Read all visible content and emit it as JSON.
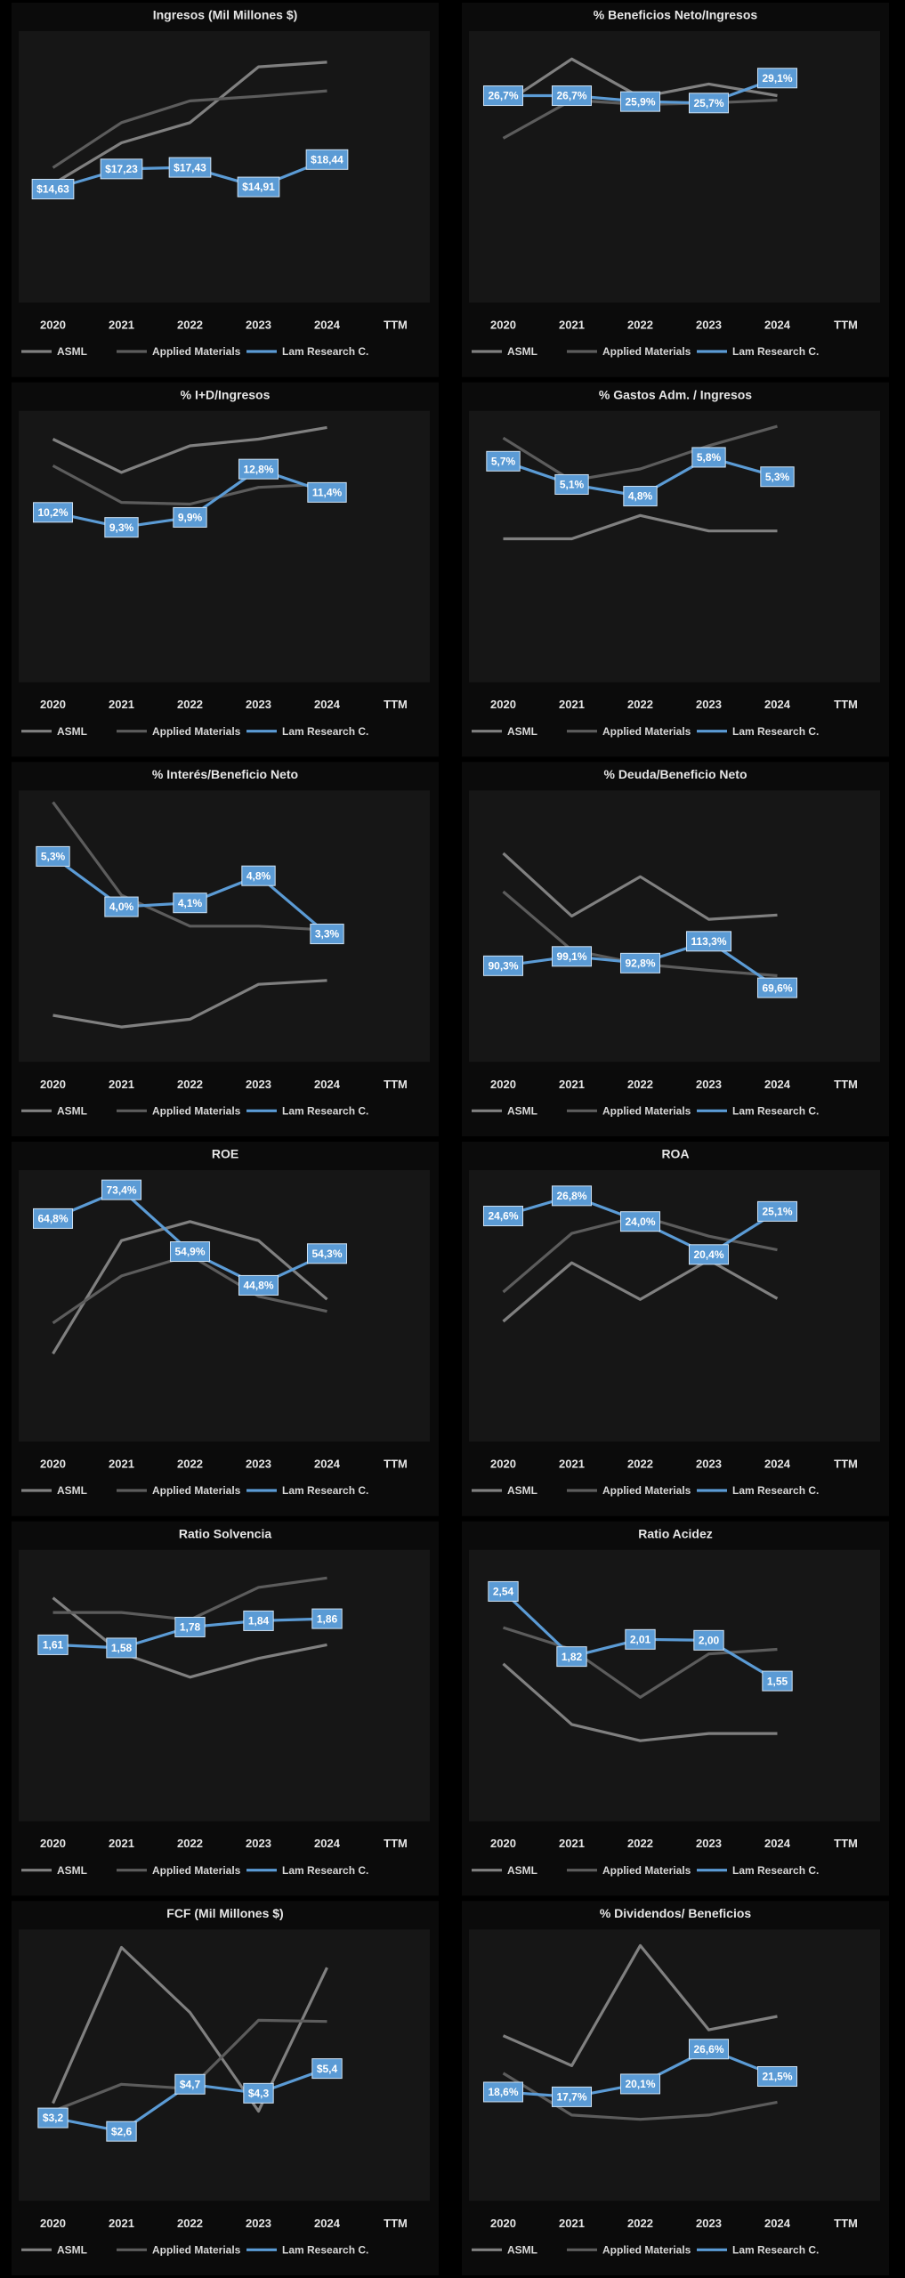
{
  "chart_data": [
    {
      "type": "line",
      "title": "Ingresos (Mil Millones $)",
      "categories": [
        "2020",
        "2021",
        "2022",
        "2023",
        "2024",
        "TTM"
      ],
      "ylim": [
        0,
        35
      ],
      "series": [
        {
          "name": "ASML",
          "color": "#808080",
          "values": [
            15.3,
            20.6,
            23.2,
            30.4,
            31.0,
            null
          ]
        },
        {
          "name": "Applied Materials",
          "color": "#5c5c5c",
          "values": [
            17.4,
            23.2,
            26.0,
            26.6,
            27.3,
            null
          ]
        },
        {
          "name": "Lam Research C.",
          "color": "#5b9bd5",
          "values": [
            14.63,
            17.23,
            17.43,
            14.91,
            18.44,
            null
          ],
          "value_labels": [
            "$14,63",
            "$17,23",
            "$17,43",
            "$14,91",
            "$18,44",
            null
          ]
        }
      ]
    },
    {
      "type": "line",
      "title": "% Beneficios Neto/Ingresos",
      "categories": [
        "2020",
        "2021",
        "2022",
        "2023",
        "2024",
        "TTM"
      ],
      "ylim": [
        -1.5,
        35.5
      ],
      "series": [
        {
          "name": "ASML",
          "color": "#808080",
          "values": [
            25.5,
            31.7,
            26.5,
            28.3,
            26.7,
            null
          ]
        },
        {
          "name": "Applied Materials",
          "color": "#5c5c5c",
          "values": [
            20.9,
            26.1,
            25.5,
            25.7,
            26.1,
            null
          ]
        },
        {
          "name": "Lam Research C.",
          "color": "#5b9bd5",
          "values": [
            26.7,
            26.7,
            25.9,
            25.7,
            29.1,
            null
          ],
          "value_labels": [
            "26,7%",
            "26,7%",
            "25,9%",
            "25,7%",
            "29,1%",
            null
          ]
        }
      ]
    },
    {
      "type": "line",
      "title": "% I+D/Ingresos",
      "categories": [
        "2020",
        "2021",
        "2022",
        "2023",
        "2024",
        "TTM"
      ],
      "ylim": [
        0,
        16.3
      ],
      "series": [
        {
          "name": "ASML",
          "color": "#808080",
          "values": [
            14.6,
            12.6,
            14.2,
            14.6,
            15.3,
            null
          ]
        },
        {
          "name": "Applied Materials",
          "color": "#5c5c5c",
          "values": [
            13.0,
            10.8,
            10.7,
            11.7,
            11.9,
            null
          ]
        },
        {
          "name": "Lam Research C.",
          "color": "#5b9bd5",
          "values": [
            10.2,
            9.3,
            9.9,
            12.8,
            11.4,
            null
          ],
          "value_labels": [
            "10,2%",
            "9,3%",
            "9,9%",
            "12,8%",
            "11,4%",
            null
          ]
        }
      ]
    },
    {
      "type": "line",
      "title": "% Gastos Adm. / Ingresos",
      "categories": [
        "2020",
        "2021",
        "2022",
        "2023",
        "2024",
        "TTM"
      ],
      "ylim": [
        0,
        7
      ],
      "series": [
        {
          "name": "ASML",
          "color": "#808080",
          "values": [
            3.7,
            3.7,
            4.3,
            3.9,
            3.9,
            null
          ]
        },
        {
          "name": "Applied Materials",
          "color": "#5c5c5c",
          "values": [
            6.3,
            5.2,
            5.5,
            6.1,
            6.6,
            null
          ]
        },
        {
          "name": "Lam Research C.",
          "color": "#5b9bd5",
          "values": [
            5.7,
            5.1,
            4.8,
            5.8,
            5.3,
            null
          ],
          "value_labels": [
            "5,7%",
            "5,1%",
            "4,8%",
            "5,8%",
            "5,3%",
            null
          ]
        }
      ]
    },
    {
      "type": "line",
      "title": "% Interés/Beneficio Neto",
      "categories": [
        "2020",
        "2021",
        "2022",
        "2023",
        "2024",
        "TTM"
      ],
      "ylim": [
        0,
        7
      ],
      "series": [
        {
          "name": "ASML",
          "color": "#808080",
          "values": [
            1.2,
            0.9,
            1.1,
            2.0,
            2.1,
            null
          ]
        },
        {
          "name": "Applied Materials",
          "color": "#5c5c5c",
          "values": [
            6.7,
            4.3,
            3.5,
            3.5,
            3.4,
            null
          ]
        },
        {
          "name": "Lam Research C.",
          "color": "#5b9bd5",
          "values": [
            5.3,
            4.0,
            4.1,
            4.8,
            3.3,
            null
          ],
          "value_labels": [
            "5,3%",
            "4,0%",
            "4,1%",
            "4,8%",
            "3,3%",
            null
          ]
        }
      ]
    },
    {
      "type": "line",
      "title": "% Deuda/Beneficio Neto",
      "categories": [
        "2020",
        "2021",
        "2022",
        "2023",
        "2024",
        "TTM"
      ],
      "ylim": [
        0,
        255
      ],
      "series": [
        {
          "name": "ASML",
          "color": "#808080",
          "values": [
            196,
            137,
            174,
            134,
            138,
            null
          ]
        },
        {
          "name": "Applied Materials",
          "color": "#5c5c5c",
          "values": [
            160,
            105,
            92,
            86,
            81,
            null
          ]
        },
        {
          "name": "Lam Research C.",
          "color": "#5b9bd5",
          "values": [
            90.3,
            99.1,
            92.8,
            113.3,
            69.6,
            null
          ],
          "value_labels": [
            "90,3%",
            "99,1%",
            "92,8%",
            "113,3%",
            "69,6%",
            null
          ]
        }
      ]
    },
    {
      "type": "line",
      "title": "ROE",
      "categories": [
        "2020",
        "2021",
        "2022",
        "2023",
        "2024",
        "TTM"
      ],
      "ylim": [
        -2,
        79.3
      ],
      "series": [
        {
          "name": "ASML",
          "color": "#808080",
          "values": [
            24.3,
            58.2,
            63.9,
            58.2,
            40.6,
            null
          ]
        },
        {
          "name": "Applied Materials",
          "color": "#5c5c5c",
          "values": [
            33.5,
            47.6,
            53.8,
            41.5,
            37.0,
            null
          ]
        },
        {
          "name": "Lam Research C.",
          "color": "#5b9bd5",
          "values": [
            64.8,
            73.4,
            54.9,
            44.8,
            54.3,
            null
          ],
          "value_labels": [
            "64,8%",
            "73,4%",
            "54,9%",
            "44,8%",
            "54,3%",
            null
          ]
        }
      ]
    },
    {
      "type": "line",
      "title": "ROA",
      "categories": [
        "2020",
        "2021",
        "2022",
        "2023",
        "2024",
        "TTM"
      ],
      "ylim": [
        0,
        29.6
      ],
      "series": [
        {
          "name": "ASML",
          "color": "#808080",
          "values": [
            13.1,
            19.5,
            15.5,
            19.8,
            15.6,
            null
          ]
        },
        {
          "name": "Applied Materials",
          "color": "#5c5c5c",
          "values": [
            16.3,
            22.7,
            24.6,
            22.4,
            20.9,
            null
          ]
        },
        {
          "name": "Lam Research C.",
          "color": "#5b9bd5",
          "values": [
            24.6,
            26.8,
            24.0,
            20.4,
            25.1,
            null
          ],
          "value_labels": [
            "24,6%",
            "26,8%",
            "24,0%",
            "20,4%",
            "25,1%",
            null
          ]
        }
      ]
    },
    {
      "type": "line",
      "title": "Ratio Solvencia",
      "categories": [
        "2020",
        "2021",
        "2022",
        "2023",
        "2024",
        "TTM"
      ],
      "ylim": [
        -0.08,
        2.52
      ],
      "series": [
        {
          "name": "ASML",
          "color": "#808080",
          "values": [
            2.06,
            1.53,
            1.3,
            1.48,
            1.61,
            null
          ]
        },
        {
          "name": "Applied Materials",
          "color": "#5c5c5c",
          "values": [
            1.92,
            1.92,
            1.85,
            2.16,
            2.25,
            null
          ]
        },
        {
          "name": "Lam Research C.",
          "color": "#5b9bd5",
          "values": [
            1.61,
            1.58,
            1.78,
            1.84,
            1.86,
            null
          ],
          "value_labels": [
            "1,61",
            "1,58",
            "1,78",
            "1,84",
            "1,86",
            null
          ]
        }
      ]
    },
    {
      "type": "line",
      "title": "Ratio Acidez",
      "categories": [
        "2020",
        "2021",
        "2022",
        "2023",
        "2024",
        "TTM"
      ],
      "ylim": [
        0,
        3
      ],
      "series": [
        {
          "name": "ASML",
          "color": "#808080",
          "values": [
            1.74,
            1.07,
            0.89,
            0.97,
            0.97,
            null
          ]
        },
        {
          "name": "Applied Materials",
          "color": "#5c5c5c",
          "values": [
            2.14,
            1.9,
            1.37,
            1.85,
            1.9,
            null
          ]
        },
        {
          "name": "Lam Research C.",
          "color": "#5b9bd5",
          "values": [
            2.54,
            1.82,
            2.01,
            2.0,
            1.55,
            null
          ],
          "value_labels": [
            "2,54",
            "1,82",
            "2,01",
            "2,00",
            "1,55",
            null
          ]
        }
      ]
    },
    {
      "type": "line",
      "title": "FCF (Mil Millones $)",
      "categories": [
        "2020",
        "2021",
        "2022",
        "2023",
        "2024",
        "TTM"
      ],
      "ylim": [
        -0.5,
        11.6
      ],
      "series": [
        {
          "name": "ASML",
          "color": "#808080",
          "values": [
            3.85,
            10.8,
            7.9,
            3.5,
            9.9,
            null
          ]
        },
        {
          "name": "Applied Materials",
          "color": "#5c5c5c",
          "values": [
            3.5,
            4.7,
            4.5,
            7.55,
            7.5,
            null
          ]
        },
        {
          "name": "Lam Research C.",
          "color": "#5b9bd5",
          "values": [
            3.2,
            2.6,
            4.7,
            4.3,
            5.4,
            null
          ],
          "value_labels": [
            "$3,2",
            "$2,6",
            "$4,7",
            "$4,3",
            "$5,4",
            null
          ]
        }
      ]
    },
    {
      "type": "line",
      "title": "% Dividendos/ Beneficios",
      "categories": [
        "2020",
        "2021",
        "2022",
        "2023",
        "2024",
        "TTM"
      ],
      "ylim": [
        -1.7,
        48.9
      ],
      "series": [
        {
          "name": "ASML",
          "color": "#808080",
          "values": [
            29.1,
            23.5,
            45.9,
            30.2,
            32.7,
            null
          ]
        },
        {
          "name": "Applied Materials",
          "color": "#5c5c5c",
          "values": [
            22.1,
            14.3,
            13.5,
            14.3,
            16.7,
            null
          ]
        },
        {
          "name": "Lam Research C.",
          "color": "#5b9bd5",
          "values": [
            18.6,
            17.7,
            20.1,
            26.6,
            21.5,
            null
          ],
          "value_labels": [
            "18,6%",
            "17,7%",
            "20,1%",
            "26,6%",
            "21,5%",
            null
          ]
        }
      ]
    }
  ]
}
